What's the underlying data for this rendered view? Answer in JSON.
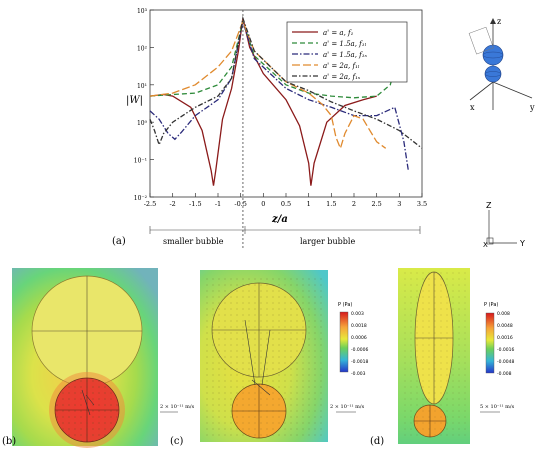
{
  "chart_data": {
    "type": "line",
    "xlabel": "z/a",
    "ylabel": "|W|",
    "xlim": [
      -2.5,
      3.5
    ],
    "ylim_log10": [
      -2,
      3
    ],
    "log_scale_y": true,
    "x_ticks": [
      "-2.5",
      "-2",
      "-1.5",
      "-1",
      "-0.5",
      "0",
      "0.5",
      "1",
      "1.5",
      "2",
      "2.5",
      "3",
      "3.5"
    ],
    "y_ticks": [
      "10⁻²",
      "10⁻¹",
      "10⁰",
      "10¹",
      "10²",
      "10³"
    ],
    "legend_position": "top-right",
    "series": [
      {
        "name": "a' = a, f₁",
        "color": "#8b1a1a",
        "dash": "solid",
        "points": [
          [
            -2.5,
            5
          ],
          [
            -2.2,
            5.5
          ],
          [
            -2,
            5
          ],
          [
            -1.6,
            2.5
          ],
          [
            -1.35,
            0.6
          ],
          [
            -1.15,
            0.05
          ],
          [
            -1.1,
            0.02
          ],
          [
            -1.05,
            0.05
          ],
          [
            -0.9,
            1.2
          ],
          [
            -0.7,
            8
          ],
          [
            -0.55,
            80
          ],
          [
            -0.45,
            600
          ],
          [
            -0.3,
            100
          ],
          [
            0,
            20
          ],
          [
            0.5,
            4
          ],
          [
            0.8,
            0.8
          ],
          [
            1,
            0.08
          ],
          [
            1.05,
            0.02
          ],
          [
            1.12,
            0.08
          ],
          [
            1.4,
            1
          ],
          [
            1.8,
            2.8
          ],
          [
            2.2,
            4
          ],
          [
            2.5,
            5
          ]
        ]
      },
      {
        "name": "a' = 1.5a, f₁ₗ",
        "color": "#2e8b3a",
        "dash": "5,3",
        "points": [
          [
            -2.5,
            5
          ],
          [
            -2,
            5.5
          ],
          [
            -1.5,
            6
          ],
          [
            -1,
            10
          ],
          [
            -0.7,
            30
          ],
          [
            -0.45,
            500
          ],
          [
            -0.2,
            60
          ],
          [
            0.5,
            10
          ],
          [
            1,
            6
          ],
          [
            1.5,
            5
          ],
          [
            2,
            4.5
          ],
          [
            2.5,
            5
          ],
          [
            2.8,
            10
          ],
          [
            3.0,
            80
          ]
        ]
      },
      {
        "name": "a' = 1.5a, f₁ₛ",
        "color": "#2a2a7a",
        "dash": "6,2,1.5,2",
        "points": [
          [
            -2.5,
            2
          ],
          [
            -2.3,
            1.2
          ],
          [
            -2.1,
            0.5
          ],
          [
            -1.95,
            0.35
          ],
          [
            -1.8,
            0.55
          ],
          [
            -1.5,
            1.5
          ],
          [
            -1,
            4
          ],
          [
            -0.7,
            15
          ],
          [
            -0.45,
            500
          ],
          [
            -0.2,
            50
          ],
          [
            0.5,
            8
          ],
          [
            1,
            4
          ],
          [
            1.5,
            2.5
          ],
          [
            2,
            1.5
          ],
          [
            2.5,
            1.5
          ],
          [
            2.9,
            2.5
          ],
          [
            3.1,
            0.3
          ],
          [
            3.2,
            0.05
          ]
        ]
      },
      {
        "name": "a' = 2a, f₁ₗ",
        "color": "#e08a2e",
        "dash": "8,3",
        "points": [
          [
            -2.5,
            5
          ],
          [
            -2,
            6
          ],
          [
            -1.5,
            10
          ],
          [
            -1,
            30
          ],
          [
            -0.7,
            80
          ],
          [
            -0.45,
            500
          ],
          [
            -0.2,
            80
          ],
          [
            0.5,
            12
          ],
          [
            1,
            6
          ],
          [
            1.3,
            3
          ],
          [
            1.5,
            1.5
          ],
          [
            1.6,
            0.4
          ],
          [
            1.7,
            0.2
          ],
          [
            1.8,
            0.5
          ],
          [
            2,
            1.5
          ],
          [
            2.2,
            1.2
          ],
          [
            2.5,
            0.3
          ],
          [
            2.7,
            0.2
          ]
        ]
      },
      {
        "name": "a' = 2a, f₁ₛ",
        "color": "#333333",
        "dash": "5,2,1.5,2",
        "points": [
          [
            -2.5,
            1.2
          ],
          [
            -2.4,
            0.6
          ],
          [
            -2.3,
            0.25
          ],
          [
            -2.2,
            0.5
          ],
          [
            -2,
            1
          ],
          [
            -1.5,
            2.5
          ],
          [
            -1,
            5
          ],
          [
            -0.7,
            15
          ],
          [
            -0.45,
            600
          ],
          [
            -0.2,
            80
          ],
          [
            0.5,
            12
          ],
          [
            1,
            7
          ],
          [
            1.5,
            3.5
          ],
          [
            2,
            2
          ],
          [
            2.5,
            1.2
          ],
          [
            3,
            0.6
          ],
          [
            3.5,
            0.2
          ]
        ]
      }
    ]
  },
  "panel_a": {
    "label": "(a)",
    "region_left": "smaller bubble",
    "region_right": "larger bubble"
  },
  "axes_3d": {
    "x": "x",
    "y": "y",
    "z": "z"
  },
  "axes_2d": {
    "x": "X",
    "y": "Y",
    "z": "Z"
  },
  "panel_b": {
    "label": "(b)",
    "scale_label": "2 × 10⁻¹¹ m/s"
  },
  "panel_c": {
    "label": "(c)",
    "scale_label": "2 × 10⁻¹¹ m/s",
    "colorbar_title": "P (Pa)",
    "colorbar_ticks": [
      "0.003",
      "0.0018",
      "0.0006",
      "-0.0006",
      "-0.0018",
      "-0.003"
    ]
  },
  "panel_d": {
    "label": "(d)",
    "scale_label": "5 × 10⁻¹¹ m/s",
    "colorbar_title": "P (Pa)",
    "colorbar_ticks": [
      "0.008",
      "0.0048",
      "0.0016",
      "-0.0016",
      "-0.0048",
      "-0.008"
    ]
  },
  "colors": {
    "hot": "#e8322a",
    "warm": "#f0e04a",
    "cool": "#3fb06a",
    "cold": "#2b5fd9"
  }
}
